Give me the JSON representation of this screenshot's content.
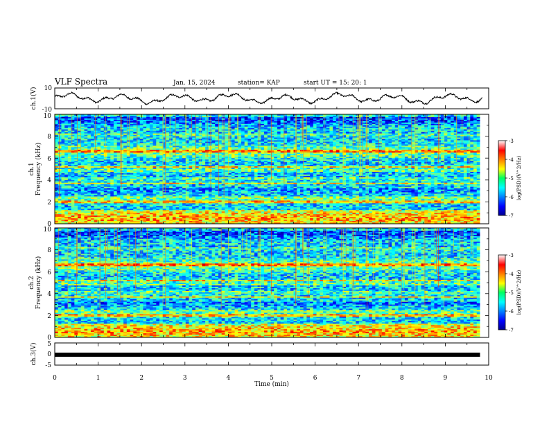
{
  "header": {
    "title": "VLF Spectra",
    "date": "Jan. 15, 2024",
    "station": "station= KAP",
    "start": "start  UT =   15: 20: 1"
  },
  "chart_data": [
    {
      "type": "line",
      "name": "ch1-waveform",
      "ylabel": "ch.1(V)",
      "ylim": [
        -10,
        10
      ],
      "y_ticks": [
        "10",
        "-10"
      ],
      "xlim": [
        0,
        10
      ]
    },
    {
      "type": "heatmap",
      "name": "ch1-spectrogram",
      "ylabel": "ch.1",
      "ylabel2": "Frequency (kHz)",
      "ylim": [
        0,
        10
      ],
      "y_ticks": [
        "0",
        "2",
        "4",
        "6",
        "8",
        "10"
      ],
      "xlim": [
        0,
        9.8
      ],
      "colorbar": {
        "label": "log(PSD)(V^2/Hz)",
        "range": [
          -7,
          -3
        ],
        "ticks": [
          "-3",
          "-4",
          "-5",
          "-6",
          "-7"
        ]
      }
    },
    {
      "type": "heatmap",
      "name": "ch2-spectrogram",
      "ylabel": "ch.2",
      "ylabel2": "Frequency (kHz)",
      "ylim": [
        0,
        10
      ],
      "y_ticks": [
        "0",
        "2",
        "4",
        "6",
        "8",
        "10"
      ],
      "xlim": [
        0,
        9.8
      ],
      "colorbar": {
        "label": "log(PSD)(V^2/Hz)",
        "range": [
          -7,
          -3
        ],
        "ticks": [
          "-3",
          "-4",
          "-5",
          "-6",
          "-7"
        ]
      }
    },
    {
      "type": "line",
      "name": "ch3-waveform",
      "ylabel": "ch.3(V)",
      "ylim": [
        -5,
        5
      ],
      "y_ticks": [
        "5",
        "0",
        "-5"
      ],
      "constant_value": -0.3,
      "xlim": [
        0,
        9.8
      ]
    }
  ],
  "x_axis": {
    "label": "Time (min)",
    "range": [
      0,
      10
    ],
    "ticks": [
      "0",
      "1",
      "2",
      "3",
      "4",
      "5",
      "6",
      "7",
      "8",
      "9",
      "10"
    ]
  }
}
